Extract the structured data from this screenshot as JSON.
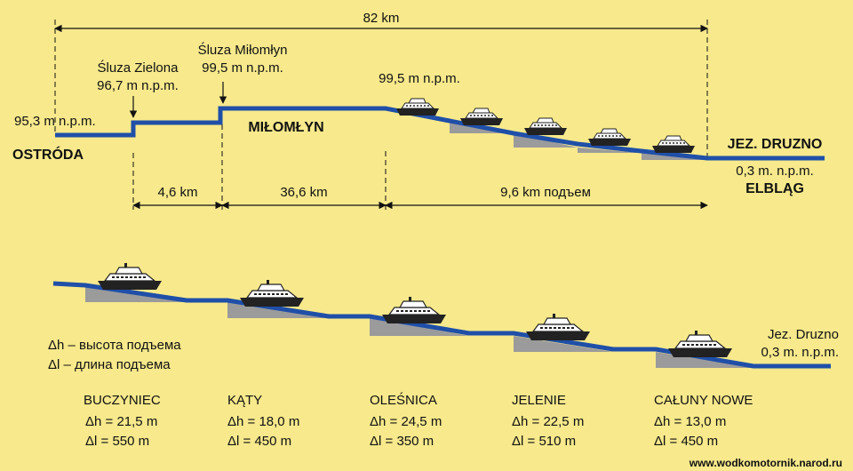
{
  "profile": {
    "total_distance": "82 km",
    "start": {
      "name": "OSTRÓDA",
      "level": "95,3 m n.p.m."
    },
    "lock_zielona": {
      "name": "Śluza Zielona",
      "level": "96,7 m n.p.m."
    },
    "lock_milomlyn": {
      "name": "Śluza Miłomłyn",
      "level": "99,5 m n.p.m."
    },
    "summit": {
      "name": "MIŁOMŁYN",
      "level": "99,5 m n.p.m."
    },
    "end": {
      "lake": "JEZ. DRUZNO",
      "level": "0,3 m. n.p.m.",
      "city": "ELBLĄG"
    },
    "segments": [
      "4,6 km",
      "36,6 km",
      "9,6 km подъем"
    ]
  },
  "detail": {
    "lake_label": "Jez. Druzno",
    "lake_level": "0,3 m. n.p.m.",
    "legend": {
      "dh": "Δh – высота подъема",
      "dl": "Δl – длина подъема"
    },
    "ramps": [
      {
        "name": "BUCZYNIEC",
        "dh": "Δh = 21,5 m",
        "dl": "Δl = 550 m"
      },
      {
        "name": "KĄTY",
        "dh": "Δh = 18,0 m",
        "dl": "Δl = 450 m"
      },
      {
        "name": "OLEŚNICA",
        "dh": "Δh = 24,5 m",
        "dl": "Δl = 350 m"
      },
      {
        "name": "JELENIE",
        "dh": "Δh = 22,5 m",
        "dl": "Δl = 510 m"
      },
      {
        "name": "CAŁUNY NOWE",
        "dh": "Δh = 13,0 m",
        "dl": "Δl = 450 m"
      }
    ]
  },
  "footer": {
    "url": "www.wodkomotornik.narod.ru"
  },
  "colors": {
    "background": "#f7e98c",
    "water": "#1f4fa8",
    "ramp": "#9b9b9b",
    "text": "#111111"
  }
}
